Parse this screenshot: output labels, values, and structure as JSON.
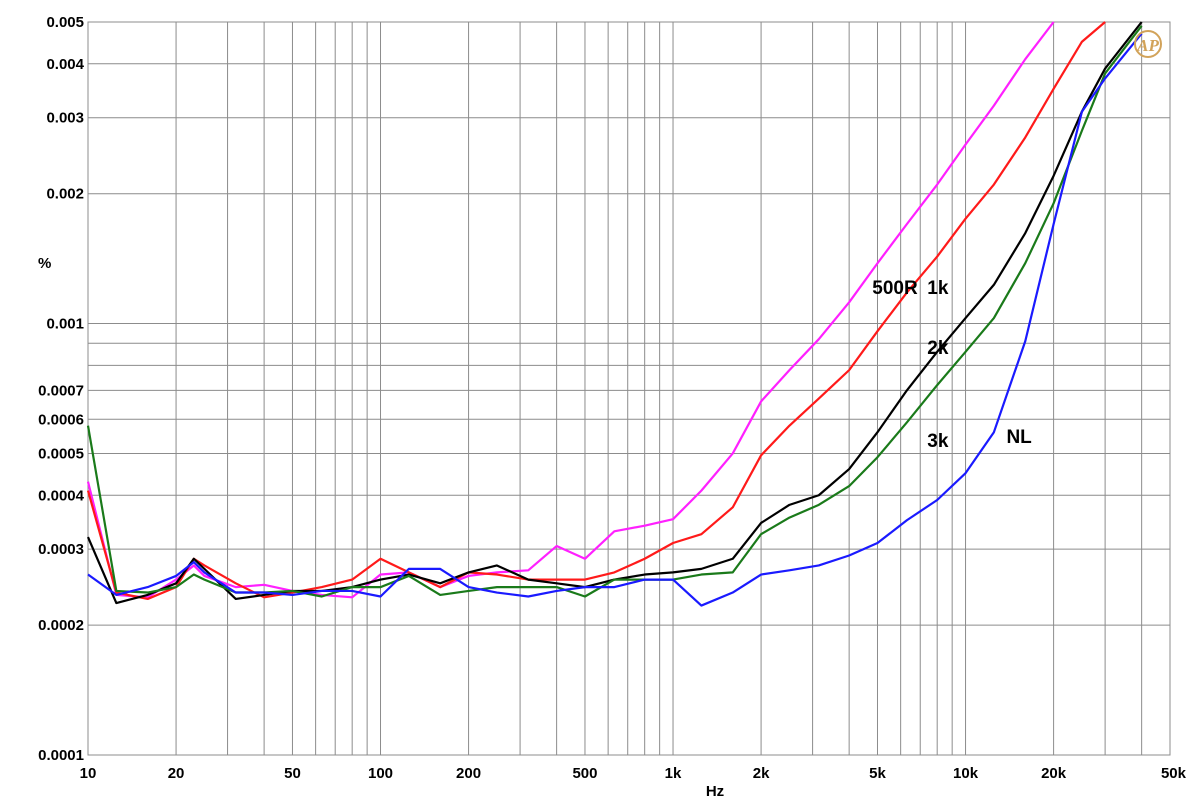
{
  "chart_data": {
    "type": "line",
    "title": "",
    "xlabel": "Hz",
    "ylabel": "%",
    "xscale": "log",
    "yscale": "log",
    "xlim": [
      10,
      50000
    ],
    "ylim": [
      0.0001,
      0.005
    ],
    "grid": true,
    "x_ticks": [
      {
        "value": 10,
        "label": "10"
      },
      {
        "value": 20,
        "label": "20"
      },
      {
        "value": 50,
        "label": "50"
      },
      {
        "value": 100,
        "label": "100"
      },
      {
        "value": 200,
        "label": "200"
      },
      {
        "value": 500,
        "label": "500"
      },
      {
        "value": 1000,
        "label": "1k"
      },
      {
        "value": 2000,
        "label": "2k"
      },
      {
        "value": 5000,
        "label": "5k"
      },
      {
        "value": 10000,
        "label": "10k"
      },
      {
        "value": 20000,
        "label": "20k"
      },
      {
        "value": 50000,
        "label": "50k"
      }
    ],
    "y_ticks": [
      {
        "value": 0.005,
        "label": "0.005"
      },
      {
        "value": 0.004,
        "label": "0.004"
      },
      {
        "value": 0.003,
        "label": "0.003"
      },
      {
        "value": 0.002,
        "label": "0.002"
      },
      {
        "value": 0.001,
        "label": "0.001"
      },
      {
        "value": 0.0007,
        "label": "0.0007"
      },
      {
        "value": 0.0006,
        "label": "0.0006"
      },
      {
        "value": 0.0005,
        "label": "0.0005"
      },
      {
        "value": 0.0004,
        "label": "0.0004"
      },
      {
        "value": 0.0003,
        "label": "0.0003"
      },
      {
        "value": 0.0002,
        "label": "0.0002"
      },
      {
        "value": 0.0001,
        "label": "0.0001"
      }
    ],
    "series": [
      {
        "name": "500R",
        "color": "#ff20ff",
        "label_at": [
          4800,
          0.00117
        ],
        "points": [
          [
            10,
            0.00043
          ],
          [
            12.5,
            0.000235
          ],
          [
            16,
            0.000232
          ],
          [
            20,
            0.000255
          ],
          [
            23,
            0.000275
          ],
          [
            25,
            0.00026
          ],
          [
            32,
            0.000245
          ],
          [
            40,
            0.000248
          ],
          [
            50,
            0.00024
          ],
          [
            63,
            0.000235
          ],
          [
            80,
            0.000232
          ],
          [
            100,
            0.000262
          ],
          [
            125,
            0.000265
          ],
          [
            160,
            0.000245
          ],
          [
            200,
            0.00026
          ],
          [
            250,
            0.000265
          ],
          [
            320,
            0.000268
          ],
          [
            400,
            0.000305
          ],
          [
            500,
            0.000285
          ],
          [
            630,
            0.00033
          ],
          [
            800,
            0.00034
          ],
          [
            1000,
            0.000352
          ],
          [
            1250,
            0.00041
          ],
          [
            1600,
            0.0005
          ],
          [
            2000,
            0.00066
          ],
          [
            2500,
            0.00078
          ],
          [
            3150,
            0.00092
          ],
          [
            4000,
            0.00112
          ],
          [
            5000,
            0.00138
          ],
          [
            6300,
            0.0017
          ],
          [
            8000,
            0.0021
          ],
          [
            10000,
            0.0026
          ],
          [
            12500,
            0.0032
          ],
          [
            16000,
            0.0041
          ],
          [
            20000,
            0.0051
          ]
        ]
      },
      {
        "name": "1k",
        "color": "#ff1a1a",
        "label_at": [
          7400,
          0.00117
        ],
        "points": [
          [
            10,
            0.00041
          ],
          [
            12.5,
            0.000238
          ],
          [
            16,
            0.00023
          ],
          [
            20,
            0.000245
          ],
          [
            23,
            0.000285
          ],
          [
            25,
            0.000275
          ],
          [
            32,
            0.00025
          ],
          [
            40,
            0.000232
          ],
          [
            50,
            0.000238
          ],
          [
            63,
            0.000245
          ],
          [
            80,
            0.000255
          ],
          [
            100,
            0.000285
          ],
          [
            125,
            0.000265
          ],
          [
            160,
            0.000245
          ],
          [
            200,
            0.000265
          ],
          [
            250,
            0.000262
          ],
          [
            320,
            0.000255
          ],
          [
            400,
            0.000255
          ],
          [
            500,
            0.000255
          ],
          [
            630,
            0.000265
          ],
          [
            800,
            0.000285
          ],
          [
            1000,
            0.00031
          ],
          [
            1250,
            0.000325
          ],
          [
            1600,
            0.000375
          ],
          [
            2000,
            0.000495
          ],
          [
            2500,
            0.00058
          ],
          [
            3150,
            0.00067
          ],
          [
            4000,
            0.00078
          ],
          [
            5000,
            0.00096
          ],
          [
            6300,
            0.00118
          ],
          [
            8000,
            0.00143
          ],
          [
            10000,
            0.00175
          ],
          [
            12500,
            0.0021
          ],
          [
            16000,
            0.0027
          ],
          [
            20000,
            0.0035
          ],
          [
            25000,
            0.0045
          ],
          [
            30000,
            0.0053
          ]
        ]
      },
      {
        "name": "2k",
        "color": "#000000",
        "label_at": [
          7400,
          0.00085
        ],
        "points": [
          [
            10,
            0.00032
          ],
          [
            12.5,
            0.000225
          ],
          [
            16,
            0.000235
          ],
          [
            20,
            0.00025
          ],
          [
            23,
            0.000285
          ],
          [
            25,
            0.00027
          ],
          [
            32,
            0.00023
          ],
          [
            40,
            0.000235
          ],
          [
            50,
            0.00024
          ],
          [
            63,
            0.00024
          ],
          [
            80,
            0.000245
          ],
          [
            100,
            0.000255
          ],
          [
            125,
            0.000262
          ],
          [
            160,
            0.00025
          ],
          [
            200,
            0.000265
          ],
          [
            250,
            0.000275
          ],
          [
            320,
            0.000255
          ],
          [
            400,
            0.00025
          ],
          [
            500,
            0.000245
          ],
          [
            630,
            0.000255
          ],
          [
            800,
            0.000262
          ],
          [
            1000,
            0.000265
          ],
          [
            1250,
            0.00027
          ],
          [
            1600,
            0.000285
          ],
          [
            2000,
            0.000345
          ],
          [
            2500,
            0.00038
          ],
          [
            3150,
            0.0004
          ],
          [
            4000,
            0.00046
          ],
          [
            5000,
            0.00056
          ],
          [
            6300,
            0.0007
          ],
          [
            8000,
            0.00086
          ],
          [
            10000,
            0.00103
          ],
          [
            12500,
            0.00123
          ],
          [
            16000,
            0.00162
          ],
          [
            20000,
            0.0022
          ],
          [
            25000,
            0.0031
          ],
          [
            30000,
            0.0039
          ],
          [
            40000,
            0.0051
          ]
        ]
      },
      {
        "name": "3k",
        "color": "#1a7a1a",
        "label_at": [
          7400,
          0.000518
        ],
        "points": [
          [
            10,
            0.00058
          ],
          [
            12.5,
            0.00024
          ],
          [
            16,
            0.000238
          ],
          [
            20,
            0.000245
          ],
          [
            23,
            0.000262
          ],
          [
            25,
            0.000255
          ],
          [
            32,
            0.000238
          ],
          [
            40,
            0.000238
          ],
          [
            50,
            0.00024
          ],
          [
            63,
            0.000233
          ],
          [
            80,
            0.000245
          ],
          [
            100,
            0.000245
          ],
          [
            125,
            0.00026
          ],
          [
            160,
            0.000235
          ],
          [
            200,
            0.00024
          ],
          [
            250,
            0.000245
          ],
          [
            320,
            0.000245
          ],
          [
            400,
            0.000245
          ],
          [
            500,
            0.000233
          ],
          [
            630,
            0.000255
          ],
          [
            800,
            0.000255
          ],
          [
            1000,
            0.000255
          ],
          [
            1250,
            0.000262
          ],
          [
            1600,
            0.000265
          ],
          [
            2000,
            0.000325
          ],
          [
            2500,
            0.000355
          ],
          [
            3150,
            0.00038
          ],
          [
            4000,
            0.00042
          ],
          [
            5000,
            0.00049
          ],
          [
            6300,
            0.00059
          ],
          [
            8000,
            0.00072
          ],
          [
            10000,
            0.00086
          ],
          [
            12500,
            0.00103
          ],
          [
            16000,
            0.00138
          ],
          [
            20000,
            0.0019
          ],
          [
            25000,
            0.0028
          ],
          [
            30000,
            0.0038
          ],
          [
            40000,
            0.0049
          ]
        ]
      },
      {
        "name": "NL",
        "color": "#1a1aff",
        "label_at": [
          13800,
          0.000528
        ],
        "points": [
          [
            10,
            0.000262
          ],
          [
            12.5,
            0.000235
          ],
          [
            16,
            0.000245
          ],
          [
            20,
            0.00026
          ],
          [
            23,
            0.00028
          ],
          [
            25,
            0.000265
          ],
          [
            32,
            0.000238
          ],
          [
            40,
            0.000238
          ],
          [
            50,
            0.000235
          ],
          [
            63,
            0.00024
          ],
          [
            80,
            0.00024
          ],
          [
            100,
            0.000233
          ],
          [
            125,
            0.00027
          ],
          [
            160,
            0.00027
          ],
          [
            200,
            0.000245
          ],
          [
            250,
            0.000238
          ],
          [
            320,
            0.000233
          ],
          [
            400,
            0.00024
          ],
          [
            500,
            0.000245
          ],
          [
            630,
            0.000245
          ],
          [
            800,
            0.000255
          ],
          [
            1000,
            0.000255
          ],
          [
            1250,
            0.000222
          ],
          [
            1600,
            0.000238
          ],
          [
            2000,
            0.000262
          ],
          [
            2500,
            0.000268
          ],
          [
            3150,
            0.000275
          ],
          [
            4000,
            0.00029
          ],
          [
            5000,
            0.00031
          ],
          [
            6300,
            0.00035
          ],
          [
            8000,
            0.00039
          ],
          [
            10000,
            0.00045
          ],
          [
            12500,
            0.00056
          ],
          [
            16000,
            0.00091
          ],
          [
            20000,
            0.0017
          ],
          [
            25000,
            0.0031
          ],
          [
            30000,
            0.0037
          ],
          [
            40000,
            0.0047
          ]
        ]
      }
    ]
  }
}
